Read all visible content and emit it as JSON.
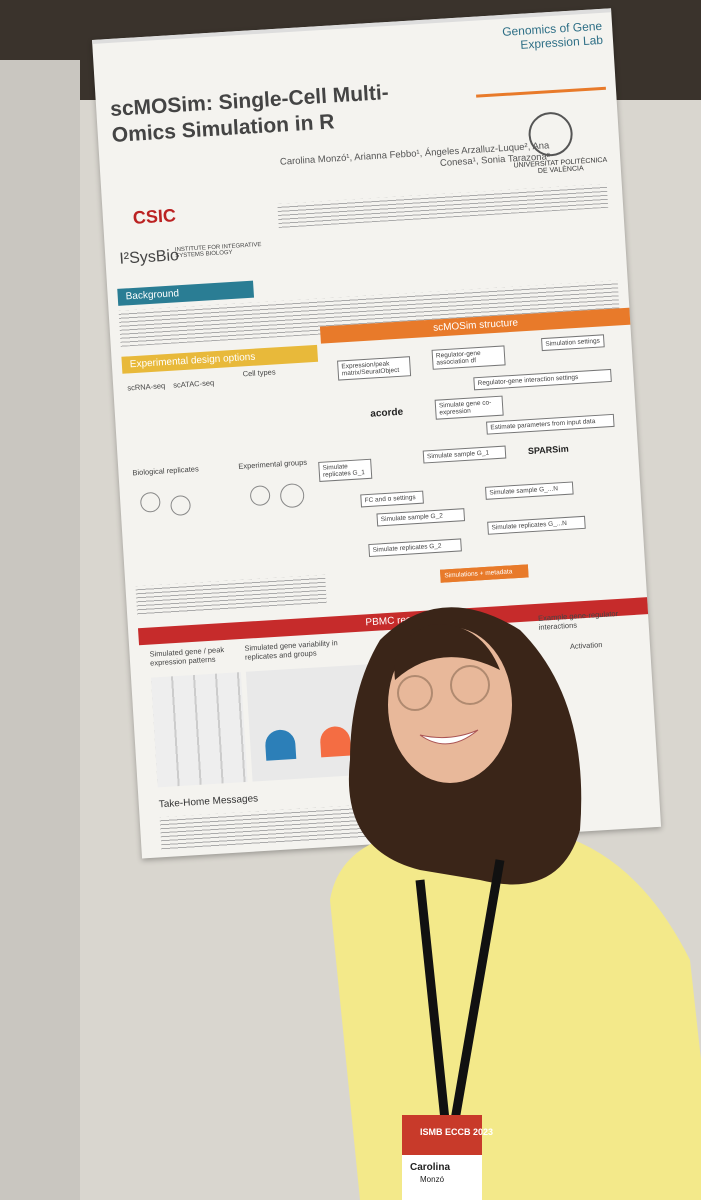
{
  "poster": {
    "title": "scMOSim: Single-Cell Multi-Omics Simulation in R",
    "authors": "Carolina Monzó¹, Arianna Febbo¹, Ángeles Arzalluz-Luque², Ana Conesa¹, Sonia Tarazona²",
    "lab": "Genomics of Gene Expression Lab",
    "university": "UNIVERSITAT POLITÈCNICA DE VALÈNCIA",
    "logos": [
      "CSIC",
      "I²SysBio",
      "INSTITUTE FOR INTEGRATIVE SYSTEMS BIOLOGY"
    ],
    "sections": {
      "background": "Background",
      "design": "Experimental design options",
      "structure": "scMOSim structure",
      "results": "PBMC results",
      "take_home": "Take-Home Messages"
    },
    "design_labels": [
      "scRNA-seq",
      "scATAC-seq",
      "Cell types",
      "Biological replicates",
      "Experimental groups"
    ],
    "structure_boxes": [
      "Expression/peak matrix/SeuratObject",
      "Regulator-gene association df",
      "Simulation settings",
      "Regulator-gene interaction settings",
      "acorde",
      "Simulate gene co-expression",
      "Estimate parameters from input data",
      "SPARSim",
      "Simulate sample G_1",
      "Simulate replicates G_1",
      "FC and α settings",
      "Simulate sample G_2",
      "Simulate sample G_...N",
      "Simulate replicates G_2",
      "Simulate replicates G_...N",
      "Simulations + metadata"
    ],
    "results_labels": [
      "Simulated gene / peak expression patterns",
      "Simulated gene variability in replicates and groups",
      "Example gene-regulator interactions",
      "Activation"
    ]
  },
  "badge": {
    "event": "ISMB ECCB 2023",
    "first_name": "Carolina",
    "last_name": "Monzó"
  }
}
